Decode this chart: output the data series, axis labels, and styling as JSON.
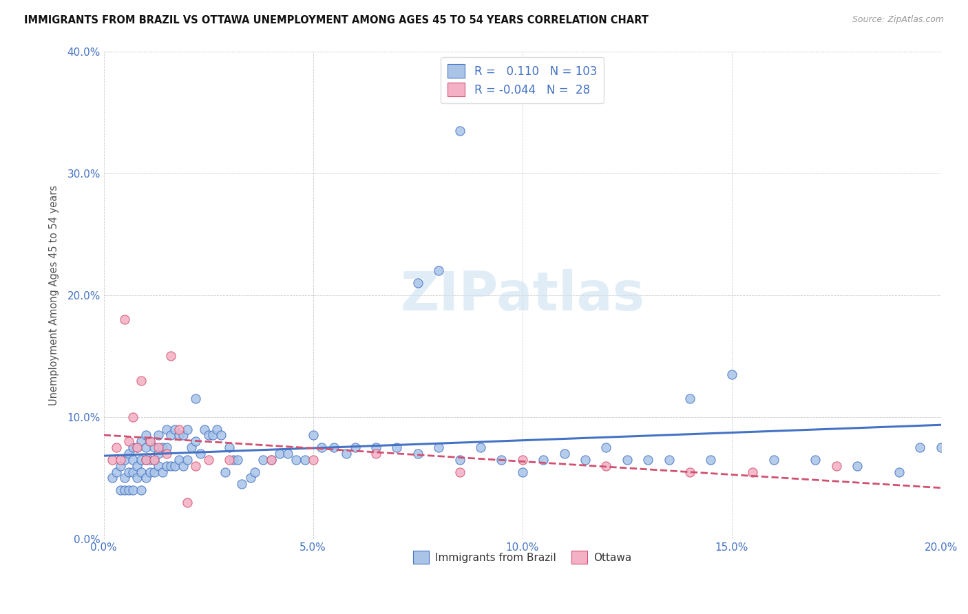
{
  "title": "IMMIGRANTS FROM BRAZIL VS OTTAWA UNEMPLOYMENT AMONG AGES 45 TO 54 YEARS CORRELATION CHART",
  "source": "Source: ZipAtlas.com",
  "xlabel_ticks": [
    "0.0%",
    "5.0%",
    "10.0%",
    "15.0%",
    "20.0%"
  ],
  "ylabel_label": "Unemployment Among Ages 45 to 54 years",
  "ylabel_ticks": [
    "0.0%",
    "10.0%",
    "20.0%",
    "30.0%",
    "40.0%"
  ],
  "xlim": [
    0.0,
    0.2
  ],
  "ylim": [
    0.0,
    0.4
  ],
  "brazil_face_color": "#aac4e8",
  "brazil_edge_color": "#4472c4",
  "ottawa_face_color": "#f4b0c4",
  "ottawa_edge_color": "#d05070",
  "brazil_line_color": "#4472c4",
  "ottawa_line_color": "#d05070",
  "R_brazil": 0.11,
  "N_brazil": 103,
  "R_ottawa": -0.044,
  "N_ottawa": 28,
  "watermark": "ZIPatlas",
  "brazil_scatter_x": [
    0.002,
    0.003,
    0.004,
    0.004,
    0.005,
    0.005,
    0.005,
    0.006,
    0.006,
    0.006,
    0.007,
    0.007,
    0.007,
    0.007,
    0.008,
    0.008,
    0.008,
    0.009,
    0.009,
    0.009,
    0.009,
    0.01,
    0.01,
    0.01,
    0.01,
    0.011,
    0.011,
    0.011,
    0.012,
    0.012,
    0.012,
    0.013,
    0.013,
    0.013,
    0.014,
    0.014,
    0.015,
    0.015,
    0.015,
    0.016,
    0.016,
    0.017,
    0.017,
    0.018,
    0.018,
    0.019,
    0.019,
    0.02,
    0.02,
    0.021,
    0.022,
    0.022,
    0.023,
    0.024,
    0.025,
    0.026,
    0.027,
    0.028,
    0.029,
    0.03,
    0.031,
    0.032,
    0.033,
    0.035,
    0.036,
    0.038,
    0.04,
    0.042,
    0.044,
    0.046,
    0.048,
    0.05,
    0.052,
    0.055,
    0.058,
    0.06,
    0.065,
    0.07,
    0.075,
    0.08,
    0.085,
    0.09,
    0.095,
    0.1,
    0.105,
    0.11,
    0.115,
    0.12,
    0.125,
    0.13,
    0.135,
    0.14,
    0.145,
    0.15,
    0.16,
    0.17,
    0.18,
    0.19,
    0.195,
    0.2,
    0.075,
    0.08,
    0.085
  ],
  "brazil_scatter_y": [
    0.05,
    0.055,
    0.04,
    0.06,
    0.04,
    0.05,
    0.065,
    0.04,
    0.055,
    0.07,
    0.04,
    0.055,
    0.065,
    0.075,
    0.05,
    0.06,
    0.075,
    0.04,
    0.055,
    0.065,
    0.08,
    0.05,
    0.065,
    0.075,
    0.085,
    0.055,
    0.065,
    0.08,
    0.055,
    0.065,
    0.075,
    0.06,
    0.07,
    0.085,
    0.055,
    0.075,
    0.06,
    0.075,
    0.09,
    0.06,
    0.085,
    0.06,
    0.09,
    0.065,
    0.085,
    0.06,
    0.085,
    0.065,
    0.09,
    0.075,
    0.08,
    0.115,
    0.07,
    0.09,
    0.085,
    0.085,
    0.09,
    0.085,
    0.055,
    0.075,
    0.065,
    0.065,
    0.045,
    0.05,
    0.055,
    0.065,
    0.065,
    0.07,
    0.07,
    0.065,
    0.065,
    0.085,
    0.075,
    0.075,
    0.07,
    0.075,
    0.075,
    0.075,
    0.07,
    0.075,
    0.065,
    0.075,
    0.065,
    0.055,
    0.065,
    0.07,
    0.065,
    0.075,
    0.065,
    0.065,
    0.065,
    0.115,
    0.065,
    0.135,
    0.065,
    0.065,
    0.06,
    0.055,
    0.075,
    0.075,
    0.21,
    0.22,
    0.335
  ],
  "ottawa_scatter_x": [
    0.002,
    0.003,
    0.004,
    0.005,
    0.006,
    0.007,
    0.008,
    0.009,
    0.01,
    0.011,
    0.012,
    0.013,
    0.015,
    0.016,
    0.018,
    0.02,
    0.022,
    0.025,
    0.03,
    0.04,
    0.05,
    0.065,
    0.085,
    0.1,
    0.12,
    0.14,
    0.155,
    0.175
  ],
  "ottawa_scatter_y": [
    0.065,
    0.075,
    0.065,
    0.18,
    0.08,
    0.1,
    0.075,
    0.13,
    0.065,
    0.08,
    0.065,
    0.075,
    0.07,
    0.15,
    0.09,
    0.03,
    0.06,
    0.065,
    0.065,
    0.065,
    0.065,
    0.07,
    0.055,
    0.065,
    0.06,
    0.055,
    0.055,
    0.06
  ]
}
